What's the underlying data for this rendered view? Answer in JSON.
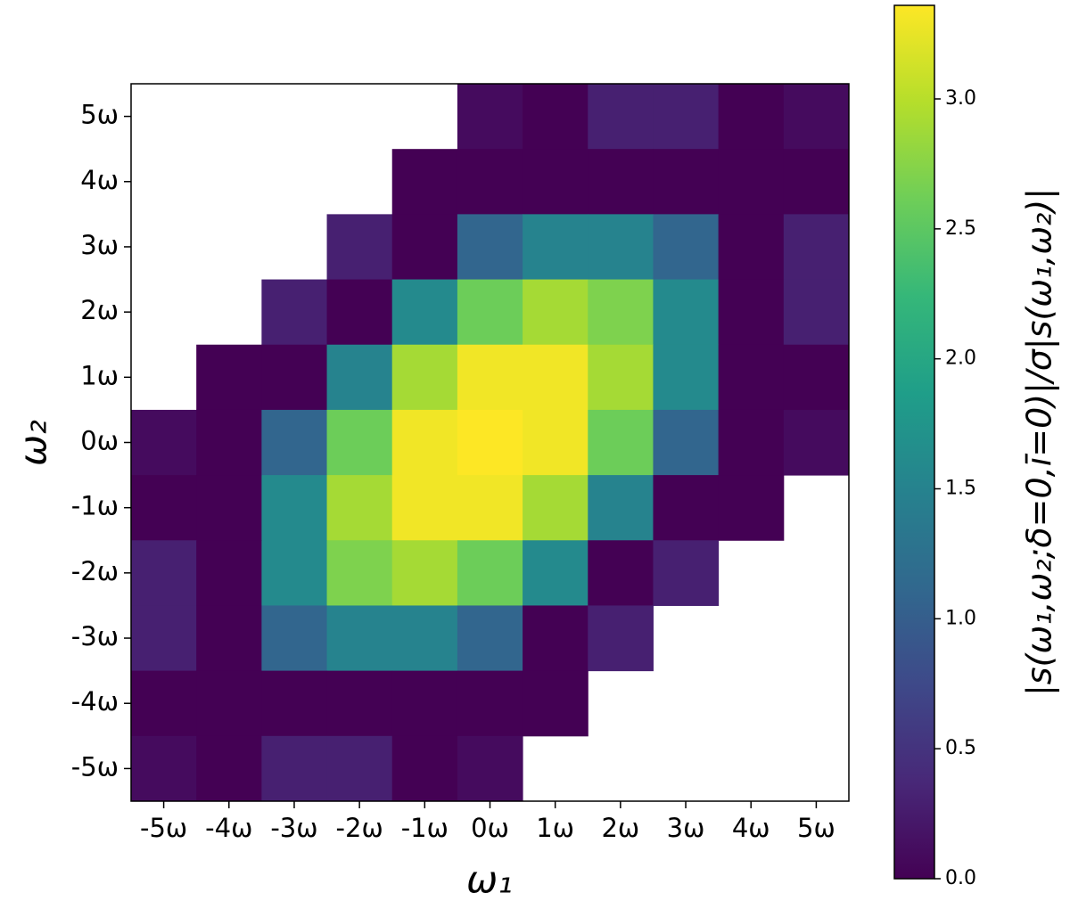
{
  "chart_data": {
    "type": "heatmap",
    "x_label": "ω₁",
    "y_label": "ω₂",
    "colorbar_label": "|s(ω₁,ω₂;δ=0,ī=0)|/σ|s(ω₁,ω₂)|",
    "x_categories": [
      "-5ω",
      "-4ω",
      "-3ω",
      "-2ω",
      "-1ω",
      "0ω",
      "1ω",
      "2ω",
      "3ω",
      "4ω",
      "5ω"
    ],
    "y_categories": [
      "5ω",
      "4ω",
      "3ω",
      "2ω",
      "1ω",
      "0ω",
      "-1ω",
      "-2ω",
      "-3ω",
      "-4ω",
      "-5ω"
    ],
    "values": [
      [
        null,
        null,
        null,
        null,
        null,
        0.1,
        0,
        0.3,
        0.3,
        0,
        0.1
      ],
      [
        null,
        null,
        null,
        null,
        0,
        0,
        0,
        0,
        0,
        0,
        0
      ],
      [
        null,
        null,
        null,
        0.3,
        0,
        1.1,
        1.5,
        1.5,
        1.1,
        0,
        0.3
      ],
      [
        null,
        null,
        0.3,
        0,
        1.6,
        2.6,
        2.9,
        2.7,
        1.6,
        0,
        0.3
      ],
      [
        null,
        0,
        0,
        1.5,
        2.9,
        3.3,
        3.3,
        2.9,
        1.6,
        0,
        0
      ],
      [
        0.1,
        0,
        1.1,
        2.6,
        3.3,
        3.4,
        3.3,
        2.6,
        1.1,
        0,
        0.1
      ],
      [
        0,
        0,
        1.6,
        2.9,
        3.3,
        3.3,
        2.9,
        1.5,
        0,
        0,
        null
      ],
      [
        0.3,
        0,
        1.6,
        2.7,
        2.9,
        2.6,
        1.6,
        0,
        0.3,
        null,
        null
      ],
      [
        0.3,
        0,
        1.1,
        1.5,
        1.5,
        1.1,
        0,
        0.3,
        null,
        null,
        null
      ],
      [
        0,
        0,
        0,
        0,
        0,
        0,
        0,
        null,
        null,
        null,
        null
      ],
      [
        0.1,
        0,
        0.3,
        0.3,
        0,
        0.1,
        null,
        null,
        null,
        null,
        null
      ]
    ],
    "colormap": "viridis",
    "zlim": [
      0,
      3.36
    ],
    "zticks": [
      {
        "value": 0,
        "label": "0.0"
      },
      {
        "value": 0.5,
        "label": "0.5"
      },
      {
        "value": 1,
        "label": "1.0"
      },
      {
        "value": 1.5,
        "label": "1.5"
      },
      {
        "value": 2,
        "label": "2.0"
      },
      {
        "value": 2.5,
        "label": "2.5"
      },
      {
        "value": 3,
        "label": "3.0"
      }
    ]
  }
}
